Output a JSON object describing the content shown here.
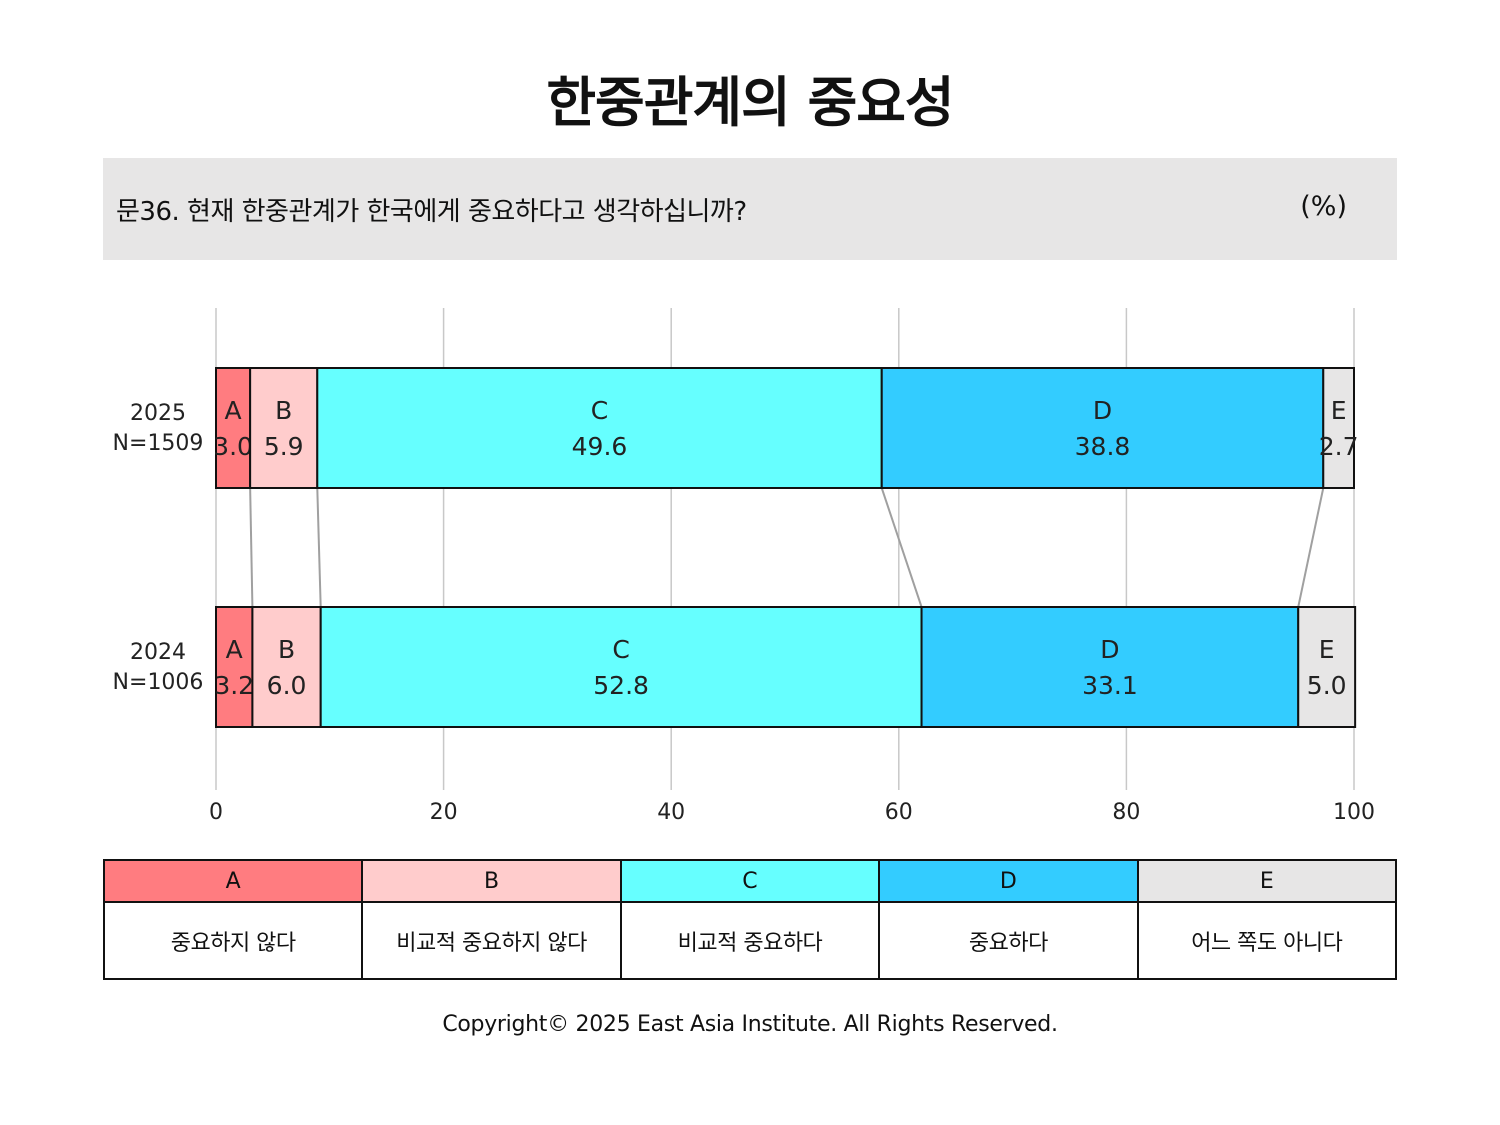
{
  "title": "한중관계의 중요성",
  "question": "문36. 현재 한중관계가 한국에게 중요하다고 생각하십니까?",
  "unit": "(%)",
  "chart_data": {
    "type": "bar",
    "orientation": "horizontal",
    "stacked": true,
    "xlim": [
      0,
      100
    ],
    "xticks": [
      0,
      20,
      40,
      60,
      80,
      100
    ],
    "grid": true,
    "categories": [
      {
        "year": "2025",
        "n": "N=1509"
      },
      {
        "year": "2024",
        "n": "N=1006"
      }
    ],
    "series": [
      {
        "name": "A",
        "color": "#ff7c80",
        "values": [
          3.0,
          3.2
        ],
        "labels": [
          "3.0",
          "3.2"
        ]
      },
      {
        "name": "B",
        "color": "#ffcccc",
        "values": [
          5.9,
          6.0
        ],
        "labels": [
          "5.9",
          "6.0"
        ]
      },
      {
        "name": "C",
        "color": "#66ffff",
        "values": [
          49.6,
          52.8
        ],
        "labels": [
          "49.6",
          "52.8"
        ]
      },
      {
        "name": "D",
        "color": "#33ccff",
        "values": [
          38.8,
          33.1
        ],
        "labels": [
          "38.8",
          "33.1"
        ]
      },
      {
        "name": "E",
        "color": "#e7e6e6",
        "values": [
          2.7,
          5.0
        ],
        "labels": [
          "2.7",
          "5.0"
        ]
      }
    ]
  },
  "legend": [
    {
      "key": "A",
      "label": "중요하지 않다",
      "color": "#ff7c80"
    },
    {
      "key": "B",
      "label": "비교적 중요하지 않다",
      "color": "#ffcccc"
    },
    {
      "key": "C",
      "label": "비교적 중요하다",
      "color": "#66ffff"
    },
    {
      "key": "D",
      "label": "중요하다",
      "color": "#33ccff"
    },
    {
      "key": "E",
      "label": "어느 쪽도 아니다",
      "color": "#e7e6e6"
    }
  ],
  "copyright": "Copyright© 2025 East Asia Institute. All Rights Reserved."
}
